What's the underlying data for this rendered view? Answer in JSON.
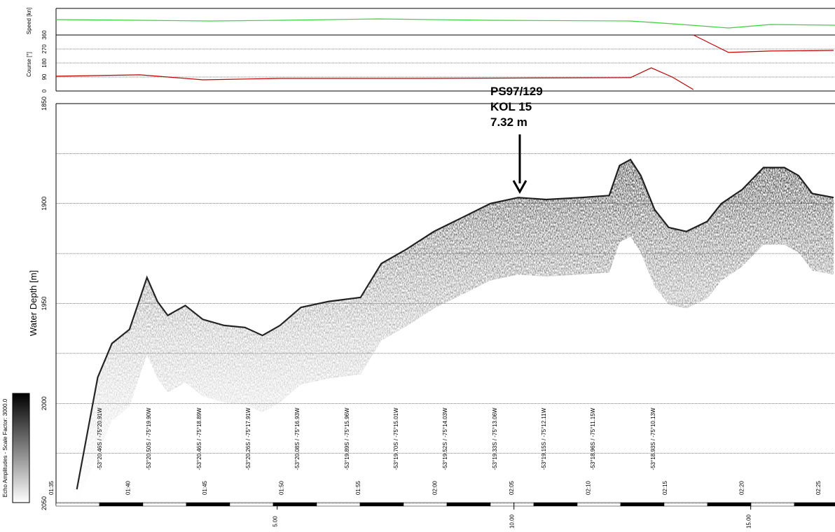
{
  "chart_data": [
    {
      "type": "line",
      "ylabel": "Speed [kn]"
    },
    {
      "type": "line",
      "ylabel": "Course [°]",
      "ylim": [
        0,
        360
      ],
      "yticks": [
        0,
        90,
        180,
        270,
        360
      ],
      "grid": true,
      "xlim": [
        0.33,
        16.78
      ],
      "x": [
        0.33,
        2.1,
        3.43,
        5.06,
        8.02,
        12.46,
        12.9,
        13.34,
        13.79,
        13.79,
        13.79,
        14.53,
        15.41,
        16.75
      ],
      "series": [
        {
          "color": "#c00000",
          "values": [
            95,
            104,
            72,
            81,
            81,
            86,
            149,
            90,
            9,
            null,
            360,
            248,
            257,
            261
          ]
        }
      ]
    },
    {
      "type": "echogram",
      "ylabel": "Water Depth [m]",
      "ylim": [
        1850,
        2050
      ],
      "yticks": [
        1850,
        1900,
        1950,
        2000,
        2050
      ],
      "minor_grid": [
        1875,
        1925,
        1975,
        2025
      ],
      "xlim": [
        0.33,
        16.78
      ],
      "xticks": [
        {
          "value": 5,
          "label": "5.00"
        },
        {
          "value": 10,
          "label": "10.00"
        },
        {
          "value": 15,
          "label": "15.00"
        }
      ],
      "time_labels": [
        "01:35",
        "01:40",
        "01:45",
        "01:50",
        "01:55",
        "02:00",
        "02:05",
        "02:10",
        "02:15",
        "02:20",
        "02:25"
      ],
      "positions": [
        "-53°20.46S / -75°20.91W",
        "-53°20.50S / -75°19.90W",
        "-53°20.46S / -75°18.89W",
        "-53°20.26S / -75°17.91W",
        "-53°20.08S / -75°16.93W",
        "-53°19.89S / -75°15.96W",
        "-53°19.70S / -75°15.01W",
        "-53°19.52S / -75°14.03W",
        "-53°19.33S / -75°13.06W",
        "-53°19.15S / -75°12.11W",
        "-53°18.96S / -75°11.15W",
        "-53°18.93S / -75°10.13W"
      ],
      "annotation": [
        "PS97/129",
        "KOL 15",
        "7.32 m"
      ],
      "colorbar_label": "Echo Amplitudes - Scale Factor: 3000.0",
      "x": [
        0.77,
        1.21,
        1.51,
        1.88,
        2.25,
        2.47,
        2.69,
        3.06,
        3.43,
        3.88,
        4.32,
        4.69,
        5.06,
        5.5,
        6.09,
        6.76,
        7.2,
        7.72,
        8.31,
        8.91,
        9.5,
        10.09,
        10.68,
        11.42,
        12.01,
        12.23,
        12.46,
        12.68,
        12.97,
        13.27,
        13.64,
        14.08,
        14.38,
        14.82,
        15.27,
        15.71,
        16.01,
        16.3,
        16.75
      ],
      "seafloor": [
        2043,
        1987,
        1970,
        1963,
        1937,
        1949,
        1956,
        1951,
        1958,
        1961,
        1962,
        1966,
        1961,
        1952,
        1949,
        1947,
        1930,
        1923,
        1914,
        1907,
        1900,
        1897,
        1898,
        1897,
        1896,
        1881,
        1878,
        1886,
        1903,
        1912,
        1914,
        1909,
        1900,
        1893,
        1882,
        1882,
        1886,
        1895,
        1897
      ]
    }
  ]
}
